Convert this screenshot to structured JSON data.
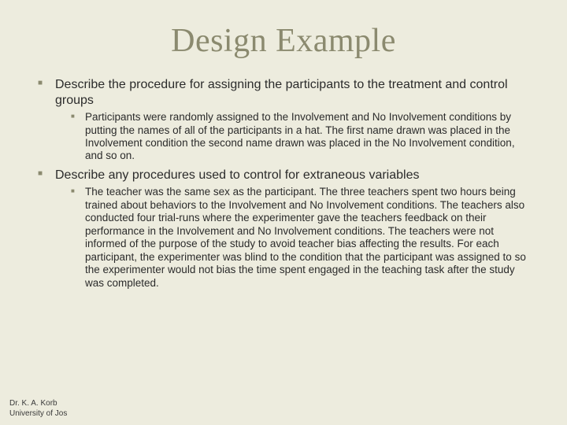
{
  "slide": {
    "title": "Design Example",
    "title_color": "#8b8a6f",
    "title_fontsize": 42,
    "title_font": "Georgia",
    "background_color": "#edecde",
    "body_font": "Verdana",
    "bullet_color": "#8b8a6f",
    "text_color": "#2b2b2b",
    "bullets": [
      {
        "text": "Describe the procedure for assigning the participants to the treatment and control groups",
        "children": [
          {
            "text": "Participants were randomly assigned to the Involvement and No Involvement conditions by putting the names of all of the participants in a hat. The first name drawn was placed in the Involvement condition the second name drawn was placed in the No Involvement condition, and so on."
          }
        ]
      },
      {
        "text": "Describe any procedures used to control for extraneous variables",
        "children": [
          {
            "text": "The teacher was the same sex as the participant. The three teachers spent two hours being trained about behaviors to the Involvement and No Involvement conditions. The teachers also conducted four trial-runs where the experimenter gave the teachers feedback on their performance in the Involvement and No Involvement conditions. The teachers were not informed of the purpose of the study to avoid teacher bias affecting the results. For each participant, the experimenter was blind to the condition that the participant was assigned to so the experimenter would not bias the time spent engaged in the teaching task after the study was completed."
          }
        ]
      }
    ],
    "footer": {
      "line1": "Dr. K. A. Korb",
      "line2": "University of Jos"
    }
  }
}
